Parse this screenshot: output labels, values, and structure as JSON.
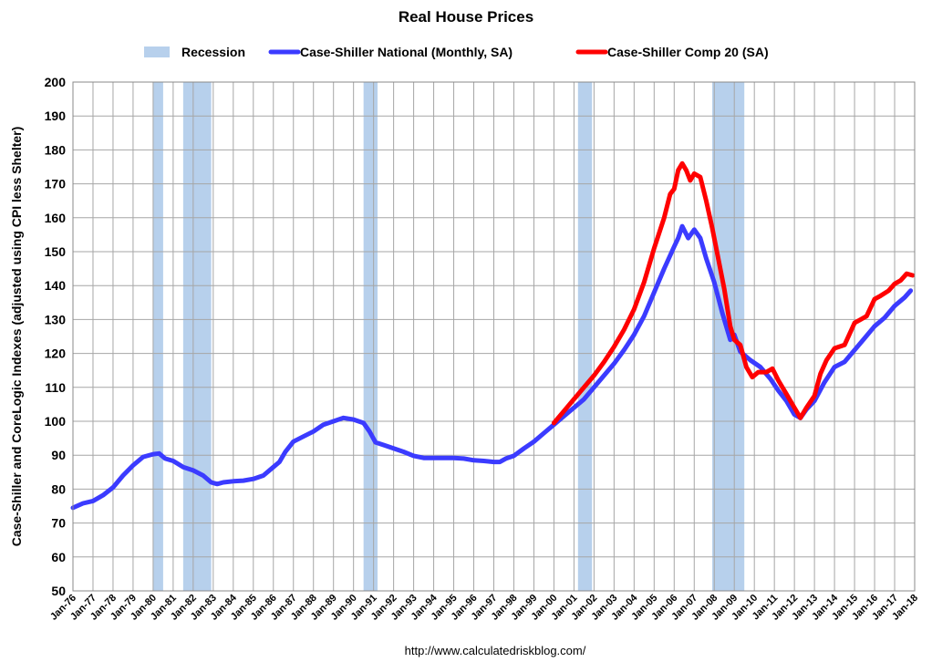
{
  "chart_data": {
    "type": "line",
    "title": "Real House Prices",
    "ylabel": "Case-Shiller and CoreLogic Indexes (adjusted using CPI less Shelter)",
    "source": "http://www.calculatedriskblog.com/",
    "ylim": [
      50,
      200
    ],
    "yticks": [
      50,
      60,
      70,
      80,
      90,
      100,
      110,
      120,
      130,
      140,
      150,
      160,
      170,
      180,
      190,
      200
    ],
    "xlim": [
      1976.0,
      2018.0
    ],
    "xticks": [
      "Jan-76",
      "Jan-77",
      "Jan-78",
      "Jan-79",
      "Jan-80",
      "Jan-81",
      "Jan-82",
      "Jan-83",
      "Jan-84",
      "Jan-85",
      "Jan-86",
      "Jan-87",
      "Jan-88",
      "Jan-89",
      "Jan-90",
      "Jan-91",
      "Jan-92",
      "Jan-93",
      "Jan-94",
      "Jan-95",
      "Jan-96",
      "Jan-97",
      "Jan-98",
      "Jan-99",
      "Jan-00",
      "Jan-01",
      "Jan-02",
      "Jan-03",
      "Jan-04",
      "Jan-05",
      "Jan-06",
      "Jan-07",
      "Jan-08",
      "Jan-09",
      "Jan-10",
      "Jan-11",
      "Jan-12",
      "Jan-13",
      "Jan-14",
      "Jan-15",
      "Jan-16",
      "Jan-17",
      "Jan-18"
    ],
    "grid": true,
    "legend": "top",
    "recessions": [
      {
        "start": 1980.0,
        "end": 1980.5
      },
      {
        "start": 1981.5,
        "end": 1982.9
      },
      {
        "start": 1990.5,
        "end": 1991.2
      },
      {
        "start": 2001.2,
        "end": 2001.9
      },
      {
        "start": 2007.9,
        "end": 2009.5
      }
    ],
    "series": [
      {
        "name": "Recession",
        "kind": "band",
        "color": "#b7d0ec"
      },
      {
        "name": "Case-Shiller National (Monthly, SA)",
        "kind": "line",
        "color": "#3b3bff",
        "points": [
          [
            1976.0,
            74.5
          ],
          [
            1976.5,
            75.8
          ],
          [
            1977.0,
            76.5
          ],
          [
            1977.5,
            78.2
          ],
          [
            1978.0,
            80.5
          ],
          [
            1978.5,
            84.0
          ],
          [
            1979.0,
            87.0
          ],
          [
            1979.5,
            89.5
          ],
          [
            1980.0,
            90.3
          ],
          [
            1980.3,
            90.5
          ],
          [
            1980.6,
            89.0
          ],
          [
            1981.0,
            88.3
          ],
          [
            1981.5,
            86.5
          ],
          [
            1982.0,
            85.5
          ],
          [
            1982.5,
            84.0
          ],
          [
            1982.9,
            82.0
          ],
          [
            1983.2,
            81.5
          ],
          [
            1983.5,
            82.0
          ],
          [
            1984.0,
            82.3
          ],
          [
            1984.5,
            82.5
          ],
          [
            1985.0,
            83.0
          ],
          [
            1985.5,
            84.0
          ],
          [
            1986.0,
            86.5
          ],
          [
            1986.3,
            88.0
          ],
          [
            1986.6,
            91.0
          ],
          [
            1987.0,
            94.0
          ],
          [
            1987.5,
            95.5
          ],
          [
            1988.0,
            97.0
          ],
          [
            1988.5,
            99.0
          ],
          [
            1989.0,
            100.0
          ],
          [
            1989.5,
            101.0
          ],
          [
            1990.0,
            100.5
          ],
          [
            1990.5,
            99.5
          ],
          [
            1990.8,
            97.0
          ],
          [
            1991.1,
            93.8
          ],
          [
            1991.5,
            93.0
          ],
          [
            1992.0,
            92.0
          ],
          [
            1992.5,
            91.0
          ],
          [
            1993.0,
            89.8
          ],
          [
            1993.5,
            89.2
          ],
          [
            1994.0,
            89.2
          ],
          [
            1995.0,
            89.2
          ],
          [
            1995.5,
            89.0
          ],
          [
            1996.0,
            88.5
          ],
          [
            1996.5,
            88.3
          ],
          [
            1997.0,
            88.0
          ],
          [
            1997.3,
            88.0
          ],
          [
            1997.6,
            89.0
          ],
          [
            1998.0,
            89.8
          ],
          [
            1998.5,
            92.0
          ],
          [
            1999.0,
            94.0
          ],
          [
            1999.5,
            96.5
          ],
          [
            2000.0,
            99.0
          ],
          [
            2000.5,
            101.5
          ],
          [
            2001.0,
            104.0
          ],
          [
            2001.5,
            106.5
          ],
          [
            2002.0,
            110.0
          ],
          [
            2002.5,
            113.5
          ],
          [
            2003.0,
            117.0
          ],
          [
            2003.5,
            121.0
          ],
          [
            2004.0,
            125.5
          ],
          [
            2004.5,
            131.0
          ],
          [
            2005.0,
            138.0
          ],
          [
            2005.5,
            145.0
          ],
          [
            2006.0,
            151.5
          ],
          [
            2006.2,
            154.0
          ],
          [
            2006.4,
            157.5
          ],
          [
            2006.7,
            154.0
          ],
          [
            2007.0,
            156.5
          ],
          [
            2007.3,
            154.0
          ],
          [
            2007.6,
            148.0
          ],
          [
            2008.0,
            141.0
          ],
          [
            2008.4,
            132.0
          ],
          [
            2008.8,
            124.0
          ],
          [
            2009.0,
            125.5
          ],
          [
            2009.3,
            120.5
          ],
          [
            2009.8,
            118.0
          ],
          [
            2010.3,
            116.0
          ],
          [
            2010.8,
            112.5
          ],
          [
            2011.2,
            109.0
          ],
          [
            2011.6,
            106.0
          ],
          [
            2012.0,
            102.0
          ],
          [
            2012.3,
            101.0
          ],
          [
            2012.6,
            103.5
          ],
          [
            2013.0,
            106.0
          ],
          [
            2013.5,
            111.5
          ],
          [
            2014.0,
            116.0
          ],
          [
            2014.5,
            117.5
          ],
          [
            2015.0,
            121.0
          ],
          [
            2015.5,
            124.5
          ],
          [
            2016.0,
            128.0
          ],
          [
            2016.5,
            130.5
          ],
          [
            2017.0,
            134.0
          ],
          [
            2017.5,
            136.5
          ],
          [
            2017.8,
            138.5
          ]
        ]
      },
      {
        "name": "Case-Shiller Comp 20  (SA)",
        "kind": "line",
        "color": "#ff0000",
        "points": [
          [
            2000.0,
            99.5
          ],
          [
            2000.5,
            103.0
          ],
          [
            2001.0,
            106.5
          ],
          [
            2001.5,
            110.0
          ],
          [
            2002.0,
            113.5
          ],
          [
            2002.5,
            117.5
          ],
          [
            2003.0,
            122.0
          ],
          [
            2003.5,
            127.0
          ],
          [
            2004.0,
            133.0
          ],
          [
            2004.5,
            141.0
          ],
          [
            2005.0,
            151.0
          ],
          [
            2005.5,
            160.0
          ],
          [
            2005.8,
            167.0
          ],
          [
            2006.0,
            168.5
          ],
          [
            2006.2,
            174.0
          ],
          [
            2006.4,
            176.0
          ],
          [
            2006.6,
            174.0
          ],
          [
            2006.8,
            171.0
          ],
          [
            2007.0,
            173.0
          ],
          [
            2007.3,
            172.0
          ],
          [
            2007.6,
            165.0
          ],
          [
            2007.9,
            157.0
          ],
          [
            2008.2,
            148.0
          ],
          [
            2008.5,
            139.0
          ],
          [
            2008.8,
            128.0
          ],
          [
            2009.0,
            124.0
          ],
          [
            2009.3,
            122.5
          ],
          [
            2009.6,
            116.0
          ],
          [
            2009.9,
            113.0
          ],
          [
            2010.2,
            114.5
          ],
          [
            2010.6,
            114.5
          ],
          [
            2010.9,
            115.5
          ],
          [
            2011.2,
            112.0
          ],
          [
            2011.6,
            108.0
          ],
          [
            2012.0,
            104.0
          ],
          [
            2012.3,
            101.0
          ],
          [
            2012.6,
            104.0
          ],
          [
            2013.0,
            107.5
          ],
          [
            2013.3,
            114.0
          ],
          [
            2013.6,
            118.0
          ],
          [
            2014.0,
            121.5
          ],
          [
            2014.5,
            122.5
          ],
          [
            2015.0,
            129.0
          ],
          [
            2015.3,
            130.0
          ],
          [
            2015.6,
            131.0
          ],
          [
            2016.0,
            136.0
          ],
          [
            2016.3,
            137.0
          ],
          [
            2016.7,
            138.5
          ],
          [
            2017.0,
            140.5
          ],
          [
            2017.3,
            141.5
          ],
          [
            2017.6,
            143.5
          ],
          [
            2017.9,
            143.0
          ]
        ]
      }
    ]
  }
}
